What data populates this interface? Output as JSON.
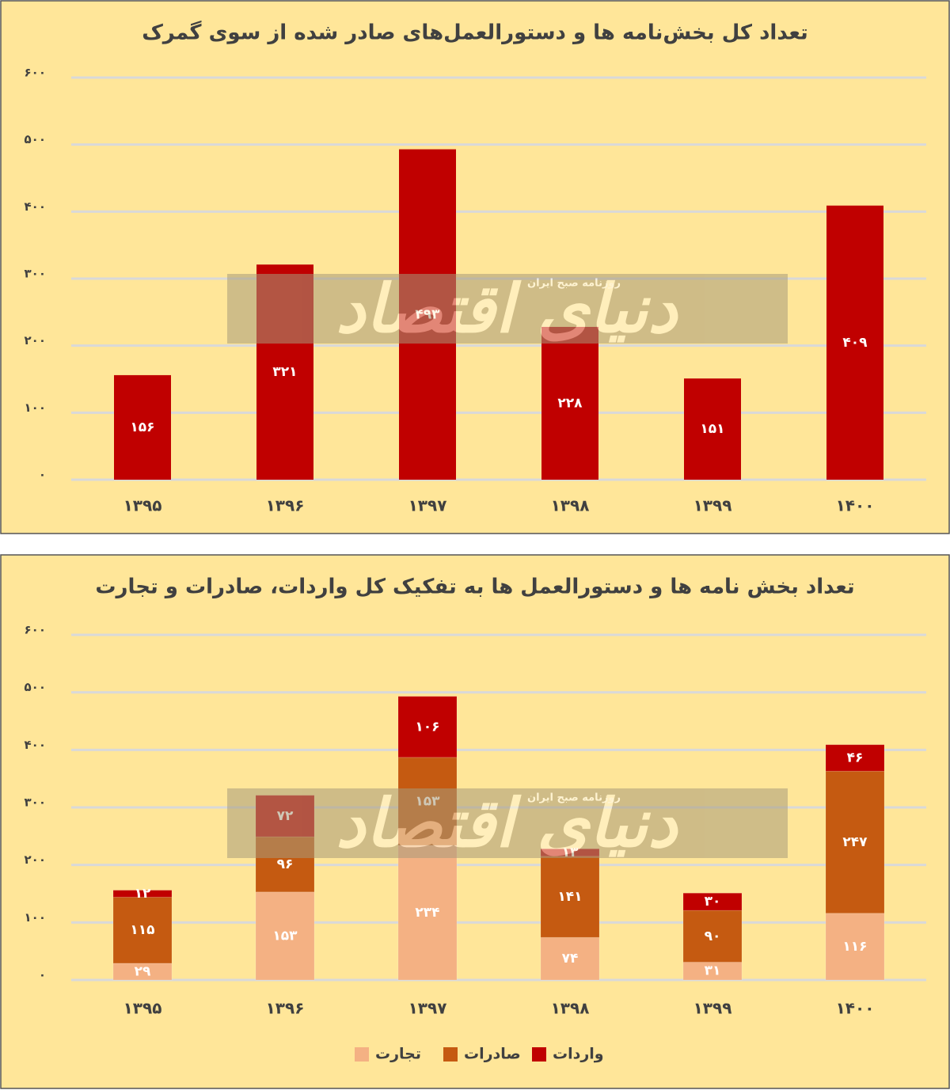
{
  "chart_data": [
    {
      "type": "bar",
      "title": "تعداد کل بخش‌نامه ها و دستورالعمل‌های صادر شده از سوی گمرک",
      "categories": [
        "۱۳۹۵",
        "۱۳۹۶",
        "۱۳۹۷",
        "۱۳۹۸",
        "۱۳۹۹",
        "۱۴۰۰"
      ],
      "series": [
        {
          "name": null,
          "color": "#c00000",
          "values": [
            156,
            321,
            493,
            228,
            151,
            409
          ],
          "value_labels": [
            "۱۵۶",
            "۳۲۱",
            "۴۹۳",
            "۲۲۸",
            "۱۵۱",
            "۴۰۹"
          ]
        }
      ],
      "ylim": [
        0,
        600
      ],
      "yticks": [
        {
          "value": 0,
          "label": "۰"
        },
        {
          "value": 100,
          "label": "۱۰۰"
        },
        {
          "value": 200,
          "label": "۲۰۰"
        },
        {
          "value": 300,
          "label": "۳۰۰"
        },
        {
          "value": 400,
          "label": "۴۰۰"
        },
        {
          "value": 500,
          "label": "۵۰۰"
        },
        {
          "value": 600,
          "label": "۶۰۰"
        }
      ],
      "grid": true,
      "legend": null
    },
    {
      "type": "stacked-bar",
      "title": "تعداد بخش نامه ها و دستورالعمل ها به تفکیک کل واردات، صادرات و تجارت",
      "categories": [
        "۱۳۹۵",
        "۱۳۹۶",
        "۱۳۹۷",
        "۱۳۹۸",
        "۱۳۹۹",
        "۱۴۰۰"
      ],
      "series": [
        {
          "name": "تجارت",
          "color": "#f4b183",
          "values": [
            29,
            153,
            234,
            74,
            31,
            116
          ],
          "value_labels": [
            "۲۹",
            "۱۵۳",
            "۲۳۴",
            "۷۴",
            "۳۱",
            "۱۱۶"
          ]
        },
        {
          "name": "صادرات",
          "color": "#c55a11",
          "values": [
            115,
            96,
            153,
            141,
            90,
            247
          ],
          "value_labels": [
            "۱۱۵",
            "۹۶",
            "۱۵۳",
            "۱۴۱",
            "۹۰",
            "۲۴۷"
          ]
        },
        {
          "name": "واردات",
          "color": "#c00000",
          "values": [
            12,
            72,
            106,
            13,
            30,
            46
          ],
          "value_labels": [
            "۱۲",
            "۷۲",
            "۱۰۶",
            "۱۳",
            "۳۰",
            "۴۶"
          ]
        }
      ],
      "ylim": [
        0,
        600
      ],
      "yticks": [
        {
          "value": 0,
          "label": "۰"
        },
        {
          "value": 100,
          "label": "۱۰۰"
        },
        {
          "value": 200,
          "label": "۲۰۰"
        },
        {
          "value": 300,
          "label": "۳۰۰"
        },
        {
          "value": 400,
          "label": "۴۰۰"
        },
        {
          "value": 500,
          "label": "۵۰۰"
        },
        {
          "value": 600,
          "label": "۶۰۰"
        }
      ],
      "grid": true,
      "legend": "bottom"
    }
  ],
  "watermark": {
    "name": "دنیای اقتصاد",
    "tagline": "روزنامه صبح ایران"
  }
}
